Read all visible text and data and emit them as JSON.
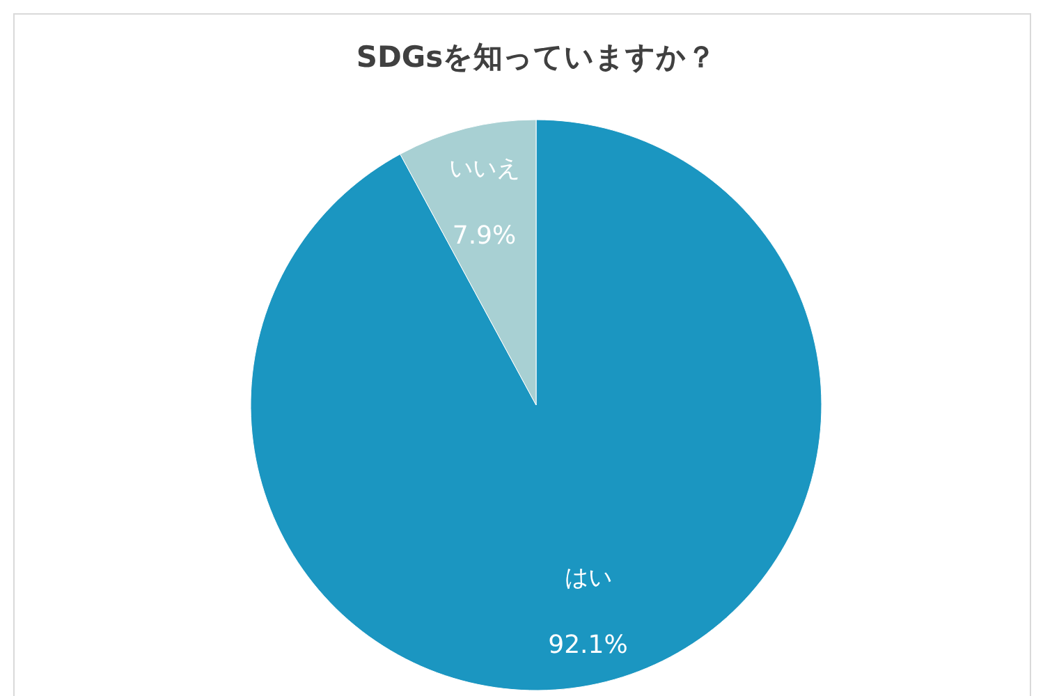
{
  "chart_data": {
    "type": "pie",
    "title": "SDGsを知っていますか？",
    "categories": [
      "はい",
      "いいえ"
    ],
    "values": [
      92.1,
      7.9
    ],
    "colors": [
      "#1b96c1",
      "#a8d0d3"
    ],
    "value_labels": [
      "92.1%",
      "7.9%"
    ],
    "legend": false
  }
}
